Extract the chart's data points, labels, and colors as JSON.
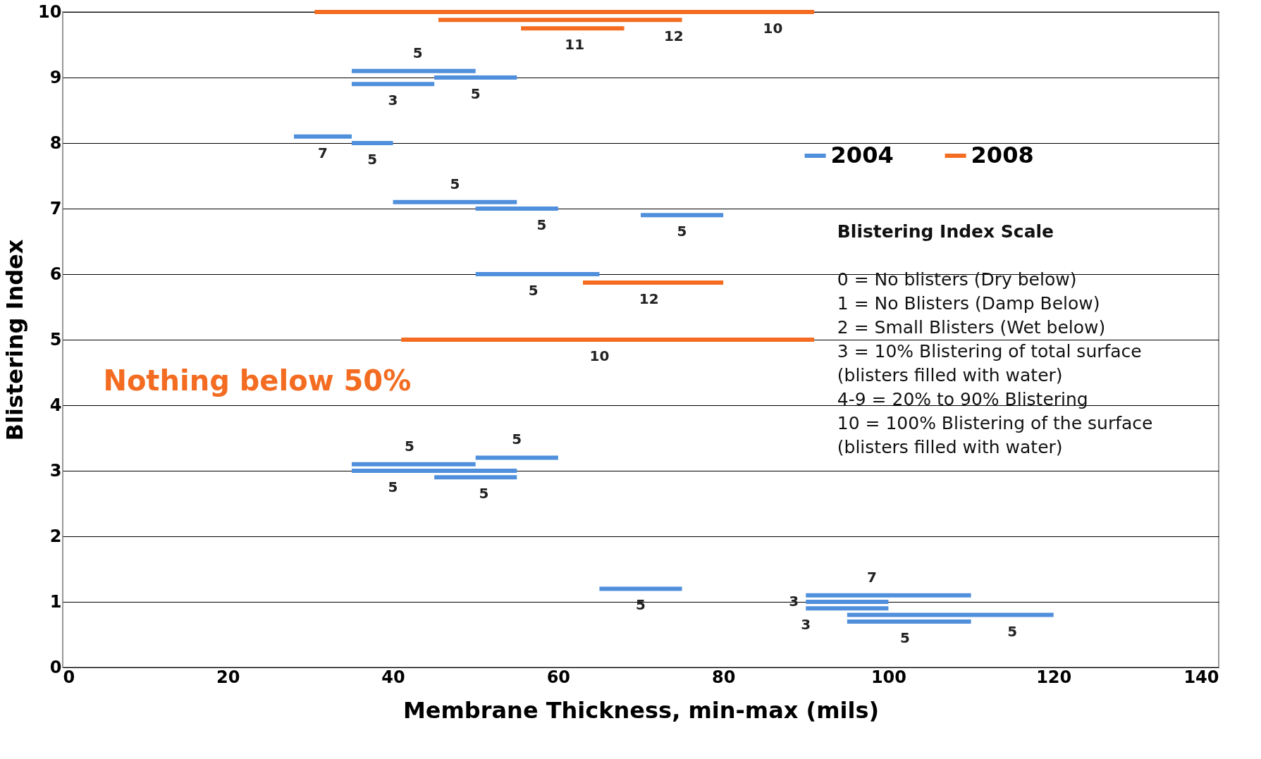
{
  "chart_data": {
    "type": "line",
    "xlabel": "Membrane Thickness, min-max (mils)",
    "ylabel": "Blistering Index",
    "xlim": [
      0,
      140
    ],
    "xticks": [
      0,
      20,
      40,
      60,
      80,
      100,
      120,
      140
    ],
    "ylim": [
      0,
      10
    ],
    "yticks": [
      0,
      1,
      2,
      3,
      4,
      5,
      6,
      7,
      8,
      9,
      10
    ],
    "grid": "y",
    "legend": "right",
    "marker": "none",
    "line_style": "solid",
    "series": [
      {
        "name": "2004",
        "color": "#4f8fdc",
        "x": [
          35,
          50
        ],
        "values": [
          9.1,
          9.1
        ]
      },
      {
        "color": "#4f8fdc",
        "x": [
          45,
          55
        ],
        "values": [
          9.0,
          9.0
        ]
      },
      {
        "color": "#4f8fdc",
        "x": [
          35,
          45
        ],
        "values": [
          8.9,
          8.9
        ]
      },
      {
        "color": "#4f8fdc",
        "x": [
          28,
          35
        ],
        "values": [
          8.1,
          8.1
        ]
      },
      {
        "color": "#4f8fdc",
        "x": [
          35,
          40
        ],
        "values": [
          8.0,
          8.0
        ]
      },
      {
        "color": "#4f8fdc",
        "x": [
          40,
          55
        ],
        "values": [
          7.1,
          7.1
        ]
      },
      {
        "color": "#4f8fdc",
        "x": [
          50,
          60
        ],
        "values": [
          7.0,
          7.0
        ]
      },
      {
        "color": "#4f8fdc",
        "x": [
          70,
          80
        ],
        "values": [
          6.9,
          6.9
        ]
      },
      {
        "color": "#4f8fdc",
        "x": [
          50,
          65
        ],
        "values": [
          6.0,
          6.0
        ]
      },
      {
        "color": "#4f8fdc",
        "x": [
          50,
          60
        ],
        "values": [
          3.2,
          3.2
        ]
      },
      {
        "color": "#4f8fdc",
        "x": [
          35,
          50
        ],
        "values": [
          3.1,
          3.1
        ]
      },
      {
        "color": "#4f8fdc",
        "x": [
          35,
          55
        ],
        "values": [
          3.0,
          3.0
        ]
      },
      {
        "color": "#4f8fdc",
        "x": [
          45,
          55
        ],
        "values": [
          2.9,
          2.9
        ]
      },
      {
        "color": "#4f8fdc",
        "x": [
          65,
          75
        ],
        "values": [
          1.2,
          1.2
        ]
      },
      {
        "color": "#4f8fdc",
        "x": [
          90,
          110
        ],
        "values": [
          1.1,
          1.1
        ]
      },
      {
        "color": "#4f8fdc",
        "x": [
          90,
          100
        ],
        "values": [
          1.0,
          1.0
        ]
      },
      {
        "color": "#4f8fdc",
        "x": [
          90,
          100
        ],
        "values": [
          0.9,
          0.9
        ]
      },
      {
        "color": "#4f8fdc",
        "x": [
          95,
          120
        ],
        "values": [
          0.8,
          0.8
        ]
      },
      {
        "color": "#4f8fdc",
        "x": [
          95,
          110
        ],
        "values": [
          0.7,
          0.7
        ]
      },
      {
        "name": "2008",
        "color": "#f36c21",
        "x": [
          30.5,
          91
        ],
        "values": [
          10.0,
          10.0
        ]
      },
      {
        "color": "#f36c21",
        "x": [
          45.5,
          75
        ],
        "values": [
          9.88,
          9.88
        ]
      },
      {
        "color": "#f36c21",
        "x": [
          55.5,
          68
        ],
        "values": [
          9.75,
          9.75
        ]
      },
      {
        "color": "#f36c21",
        "x": [
          63,
          80
        ],
        "values": [
          5.87,
          5.87
        ]
      },
      {
        "color": "#f36c21",
        "x": [
          41,
          91
        ],
        "values": [
          5.0,
          5.0
        ]
      }
    ],
    "annotations": [
      "Nothing below 50%",
      "Blistering  Index Scale",
      "0 = No blisters (Dry below)",
      "1 = No Blisters (Damp Below)",
      "2 = Small Blisters (Wet below)",
      "3 = 10% Blistering of total surface",
      "(blisters filled with water)",
      "4-9 = 20% to 90% Blistering",
      "10 = 100% Blistering of the surface",
      "(blisters filled with water)",
      {
        "text": "5",
        "x": 43,
        "y": 9.1
      },
      {
        "text": "3",
        "x": 40,
        "y": 8.9
      },
      {
        "text": "5",
        "x": 50,
        "y": 9.0
      },
      {
        "text": "7",
        "x": 31.5,
        "y": 8.1
      },
      {
        "text": "5",
        "x": 37.5,
        "y": 8.0
      },
      {
        "text": "5",
        "x": 47.5,
        "y": 7.1
      },
      {
        "text": "5",
        "x": 58,
        "y": 7.0
      },
      {
        "text": "5",
        "x": 75,
        "y": 6.9
      },
      {
        "text": "5",
        "x": 57,
        "y": 6.0
      },
      {
        "text": "12",
        "x": 71,
        "y": 5.87
      },
      {
        "text": "10",
        "x": 65,
        "y": 5.0
      },
      {
        "text": "5",
        "x": 42,
        "y": 3.1
      },
      {
        "text": "5",
        "x": 55,
        "y": 3.2
      },
      {
        "text": "5",
        "x": 40,
        "y": 3.0
      },
      {
        "text": "5",
        "x": 51,
        "y": 2.9
      },
      {
        "text": "5",
        "x": 70,
        "y": 1.2
      },
      {
        "text": "3",
        "x": 90,
        "y": 1.0
      },
      {
        "text": "7",
        "x": 98,
        "y": 1.1
      },
      {
        "text": "3",
        "x": 90,
        "y": 0.9
      },
      {
        "text": "5",
        "x": 102,
        "y": 0.7
      },
      {
        "text": "5",
        "x": 115,
        "y": 0.8
      },
      {
        "text": "12",
        "x": 74,
        "y": 9.88
      },
      {
        "text": "11",
        "x": 62,
        "y": 9.75
      },
      {
        "text": "10",
        "x": 86,
        "y": 10.0
      }
    ]
  }
}
